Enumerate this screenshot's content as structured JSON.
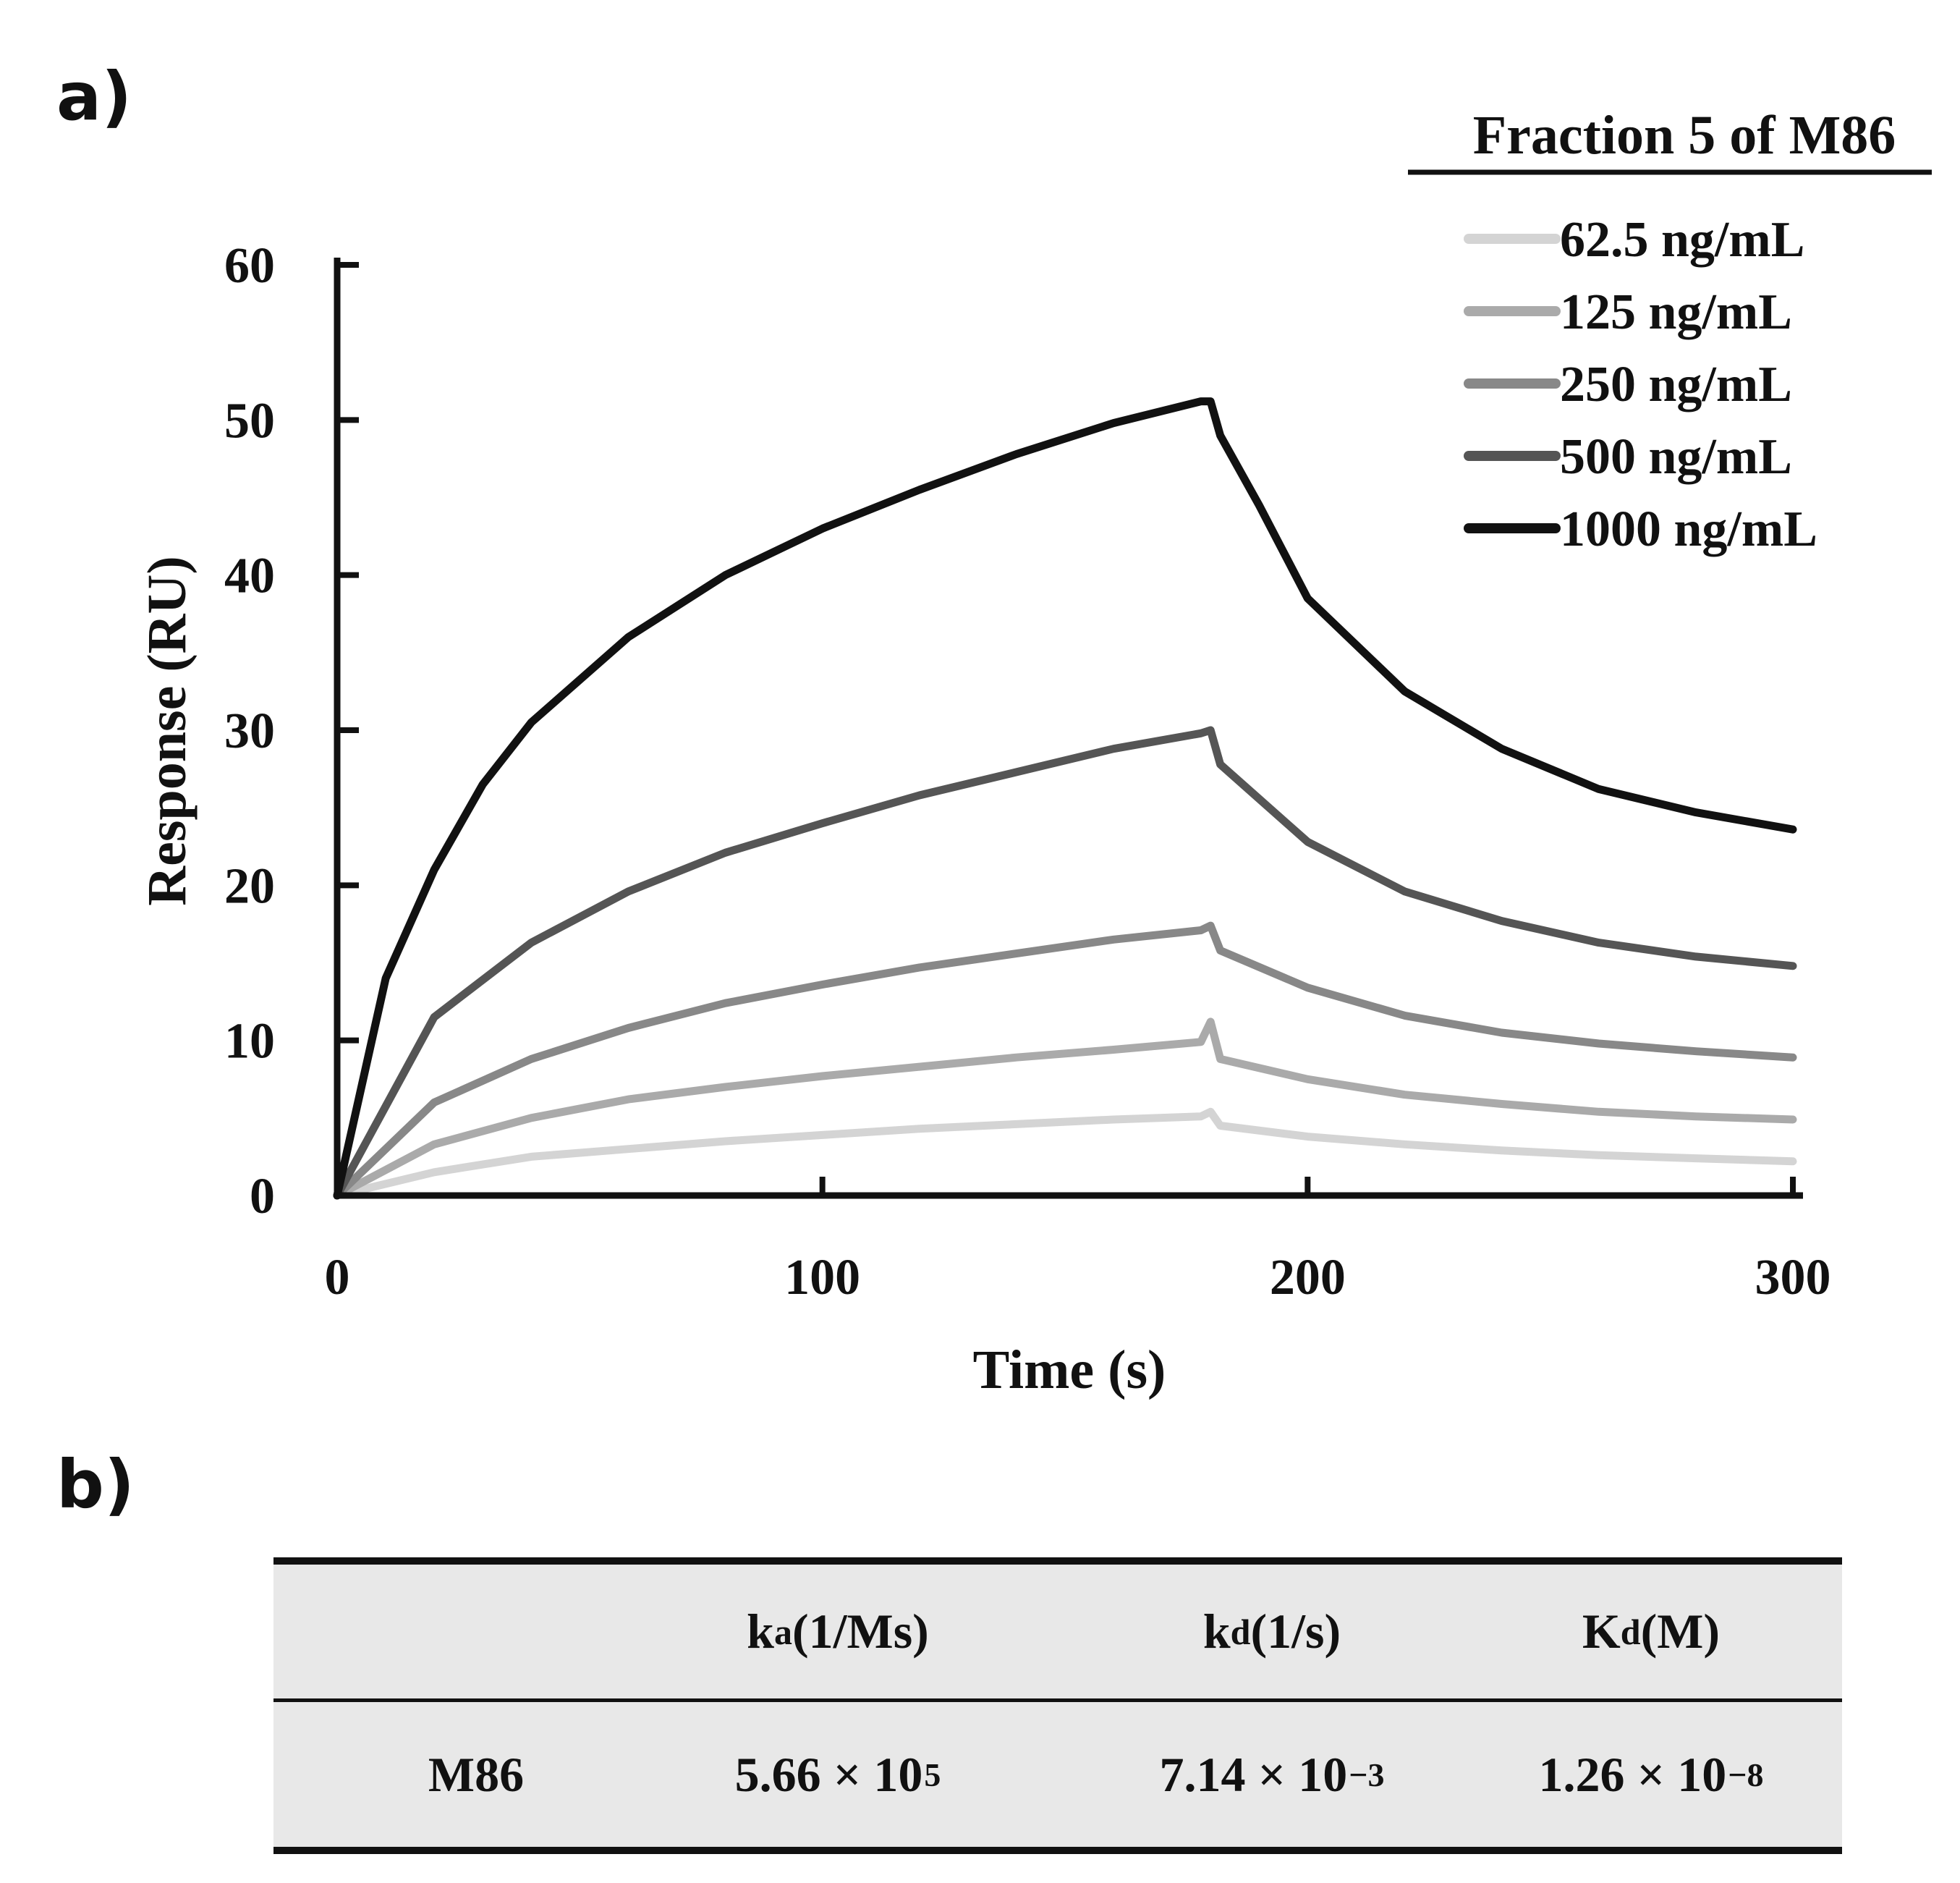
{
  "panel_labels": {
    "a": "a)",
    "b": "b)"
  },
  "chart_data": {
    "type": "line",
    "xlabel": "Time (s)",
    "ylabel": "Response (RU)",
    "xlim": [
      0,
      300
    ],
    "ylim": [
      0,
      60
    ],
    "x_ticks": [
      "0",
      "100",
      "200",
      "300"
    ],
    "y_ticks": [
      "0",
      "10",
      "20",
      "30",
      "40",
      "50",
      "60"
    ],
    "legend_title": "Fraction 5 of M86",
    "legend_position": "top-right",
    "association_end": 180,
    "series": [
      {
        "name": "62.5 ng/mL",
        "color": "#d4d4d4",
        "x": [
          0,
          20,
          40,
          60,
          80,
          100,
          120,
          140,
          160,
          178,
          180,
          182,
          200,
          220,
          240,
          260,
          280,
          300
        ],
        "y": [
          0,
          1.5,
          2.5,
          3.0,
          3.5,
          3.9,
          4.3,
          4.6,
          4.9,
          5.1,
          5.4,
          4.5,
          3.8,
          3.3,
          2.9,
          2.6,
          2.4,
          2.2
        ]
      },
      {
        "name": "125 ng/mL",
        "color": "#aaaaaa",
        "x": [
          0,
          20,
          40,
          60,
          80,
          100,
          120,
          140,
          160,
          178,
          180,
          182,
          200,
          220,
          240,
          260,
          280,
          300
        ],
        "y": [
          0,
          3.3,
          5.0,
          6.2,
          7.0,
          7.7,
          8.3,
          8.9,
          9.4,
          9.9,
          11.2,
          8.8,
          7.5,
          6.5,
          5.9,
          5.4,
          5.1,
          4.9
        ]
      },
      {
        "name": "250 ng/mL",
        "color": "#888888",
        "x": [
          0,
          20,
          40,
          60,
          80,
          100,
          120,
          140,
          160,
          178,
          180,
          182,
          200,
          220,
          240,
          260,
          280,
          300
        ],
        "y": [
          0,
          6.0,
          8.8,
          10.8,
          12.4,
          13.6,
          14.7,
          15.6,
          16.5,
          17.1,
          17.4,
          15.8,
          13.4,
          11.6,
          10.5,
          9.8,
          9.3,
          8.9
        ]
      },
      {
        "name": "500 ng/mL",
        "color": "#555555",
        "x": [
          0,
          20,
          40,
          60,
          80,
          100,
          120,
          140,
          160,
          178,
          180,
          182,
          200,
          220,
          240,
          260,
          280,
          300
        ],
        "y": [
          0,
          11.5,
          16.3,
          19.6,
          22.1,
          24.0,
          25.8,
          27.3,
          28.8,
          29.8,
          30.0,
          27.8,
          22.8,
          19.6,
          17.7,
          16.3,
          15.4,
          14.8
        ]
      },
      {
        "name": "1000 ng/mL",
        "color": "#111111",
        "x": [
          0,
          10,
          20,
          30,
          40,
          60,
          80,
          100,
          120,
          140,
          160,
          178,
          180,
          182,
          190,
          200,
          220,
          240,
          260,
          280,
          300
        ],
        "y": [
          0,
          14,
          21,
          26.5,
          30.5,
          36.0,
          40.0,
          43.0,
          45.5,
          47.8,
          49.8,
          51.2,
          51.2,
          49.0,
          44.5,
          38.5,
          32.5,
          28.8,
          26.2,
          24.7,
          23.6
        ]
      }
    ]
  },
  "table": {
    "headers": [
      {
        "main": "",
        "sub": "",
        "unit": ""
      },
      {
        "main": "k",
        "sub": "a",
        "unit": " (1/Ms)"
      },
      {
        "main": "k",
        "sub": "d",
        "unit": " (1/s)"
      },
      {
        "main": "K",
        "sub": "d",
        "unit": " (M)"
      }
    ],
    "row": {
      "name": "M86",
      "ka": {
        "mantissa": "5.66 × 10",
        "exponent": "5"
      },
      "kd": {
        "mantissa": "7.14 × 10",
        "exponent": "−3"
      },
      "Kd": {
        "mantissa": "1.26 × 10",
        "exponent": "−8"
      }
    }
  }
}
